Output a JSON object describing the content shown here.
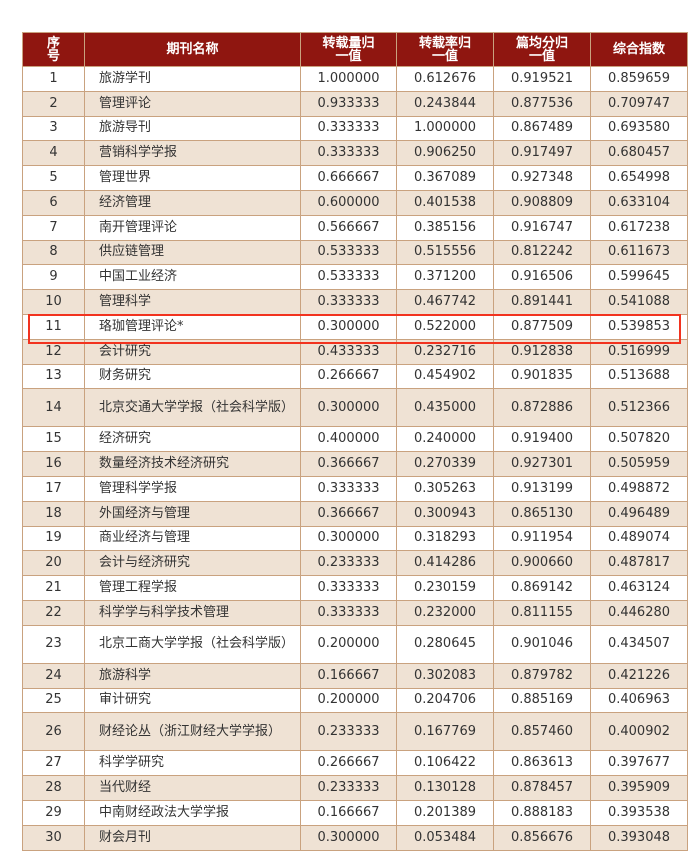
{
  "highlight_color": "#f2331f",
  "header": [
    "序号",
    "期刊名称",
    "转载量归一值",
    "转载率归一值",
    "篇均分归一值",
    "综合指数"
  ],
  "rows": [
    [
      "1",
      "旅游学刊",
      "1.000000",
      "0.612676",
      "0.919521",
      "0.859659"
    ],
    [
      "2",
      "管理评论",
      "0.933333",
      "0.243844",
      "0.877536",
      "0.709747"
    ],
    [
      "3",
      "旅游导刊",
      "0.333333",
      "1.000000",
      "0.867489",
      "0.693580"
    ],
    [
      "4",
      "营销科学学报",
      "0.333333",
      "0.906250",
      "0.917497",
      "0.680457"
    ],
    [
      "5",
      "管理世界",
      "0.666667",
      "0.367089",
      "0.927348",
      "0.654998"
    ],
    [
      "6",
      "经济管理",
      "0.600000",
      "0.401538",
      "0.908809",
      "0.633104"
    ],
    [
      "7",
      "南开管理评论",
      "0.566667",
      "0.385156",
      "0.916747",
      "0.617238"
    ],
    [
      "8",
      "供应链管理",
      "0.533333",
      "0.515556",
      "0.812242",
      "0.611673"
    ],
    [
      "9",
      "中国工业经济",
      "0.533333",
      "0.371200",
      "0.916506",
      "0.599645"
    ],
    [
      "10",
      "管理科学",
      "0.333333",
      "0.467742",
      "0.891441",
      "0.541088"
    ],
    [
      "11",
      "珞珈管理评论*",
      "0.300000",
      "0.522000",
      "0.877509",
      "0.539853"
    ],
    [
      "12",
      "会计研究",
      "0.433333",
      "0.232716",
      "0.912838",
      "0.516999"
    ],
    [
      "13",
      "财务研究",
      "0.266667",
      "0.454902",
      "0.901835",
      "0.513688"
    ],
    [
      "14",
      "北京交通大学学报（社会科学版）",
      "0.300000",
      "0.435000",
      "0.872886",
      "0.512366"
    ],
    [
      "15",
      "经济研究",
      "0.400000",
      "0.240000",
      "0.919400",
      "0.507820"
    ],
    [
      "16",
      "数量经济技术经济研究",
      "0.366667",
      "0.270339",
      "0.927301",
      "0.505959"
    ],
    [
      "17",
      "管理科学学报",
      "0.333333",
      "0.305263",
      "0.913199",
      "0.498872"
    ],
    [
      "18",
      "外国经济与管理",
      "0.366667",
      "0.300943",
      "0.865130",
      "0.496489"
    ],
    [
      "19",
      "商业经济与管理",
      "0.300000",
      "0.318293",
      "0.911954",
      "0.489074"
    ],
    [
      "20",
      "会计与经济研究",
      "0.233333",
      "0.414286",
      "0.900660",
      "0.487817"
    ],
    [
      "21",
      "管理工程学报",
      "0.333333",
      "0.230159",
      "0.869142",
      "0.463124"
    ],
    [
      "22",
      "科学学与科学技术管理",
      "0.333333",
      "0.232000",
      "0.811155",
      "0.446280"
    ],
    [
      "23",
      "北京工商大学学报（社会科学版）",
      "0.200000",
      "0.280645",
      "0.901046",
      "0.434507"
    ],
    [
      "24",
      "旅游科学",
      "0.166667",
      "0.302083",
      "0.879782",
      "0.421226"
    ],
    [
      "25",
      "审计研究",
      "0.200000",
      "0.204706",
      "0.885169",
      "0.406963"
    ],
    [
      "26",
      "财经论丛（浙江财经大学学报）",
      "0.233333",
      "0.167769",
      "0.857460",
      "0.400902"
    ],
    [
      "27",
      "科学学研究",
      "0.266667",
      "0.106422",
      "0.863613",
      "0.397677"
    ],
    [
      "28",
      "当代财经",
      "0.233333",
      "0.130128",
      "0.878457",
      "0.395909"
    ],
    [
      "29",
      "中南财经政法大学学报",
      "0.166667",
      "0.201389",
      "0.888183",
      "0.393538"
    ],
    [
      "30",
      "财会月刊",
      "0.300000",
      "0.053484",
      "0.856676",
      "0.393048"
    ]
  ]
}
